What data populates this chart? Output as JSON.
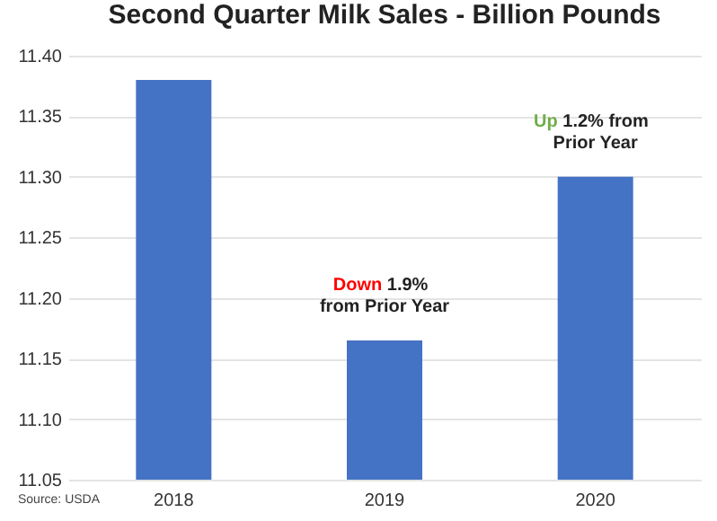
{
  "chart_data": {
    "type": "bar",
    "title": "Second Quarter Milk Sales - Billion Pounds",
    "categories": [
      "2018",
      "2019",
      "2020"
    ],
    "values": [
      11.38,
      11.165,
      11.3
    ],
    "color": "#4472c4",
    "ylim": [
      11.05,
      11.4
    ],
    "yticks": [
      {
        "value": 11.05,
        "label": "11.05"
      },
      {
        "value": 11.1,
        "label": "11.10"
      },
      {
        "value": 11.15,
        "label": "11.15"
      },
      {
        "value": 11.2,
        "label": "11.20"
      },
      {
        "value": 11.25,
        "label": "11.25"
      },
      {
        "value": 11.3,
        "label": "11.30"
      },
      {
        "value": 11.35,
        "label": "11.35"
      },
      {
        "value": 11.4,
        "label": "11.40"
      }
    ],
    "grid": "y",
    "annotations": [
      {
        "text": "Down 1.9%\nfrom Prior Year",
        "x": "2019",
        "y": 11.165
      },
      {
        "text": "Up 1.2% from\nPrior Year",
        "x": "2020",
        "y": 11.3
      },
      "Source: USDA"
    ]
  }
}
